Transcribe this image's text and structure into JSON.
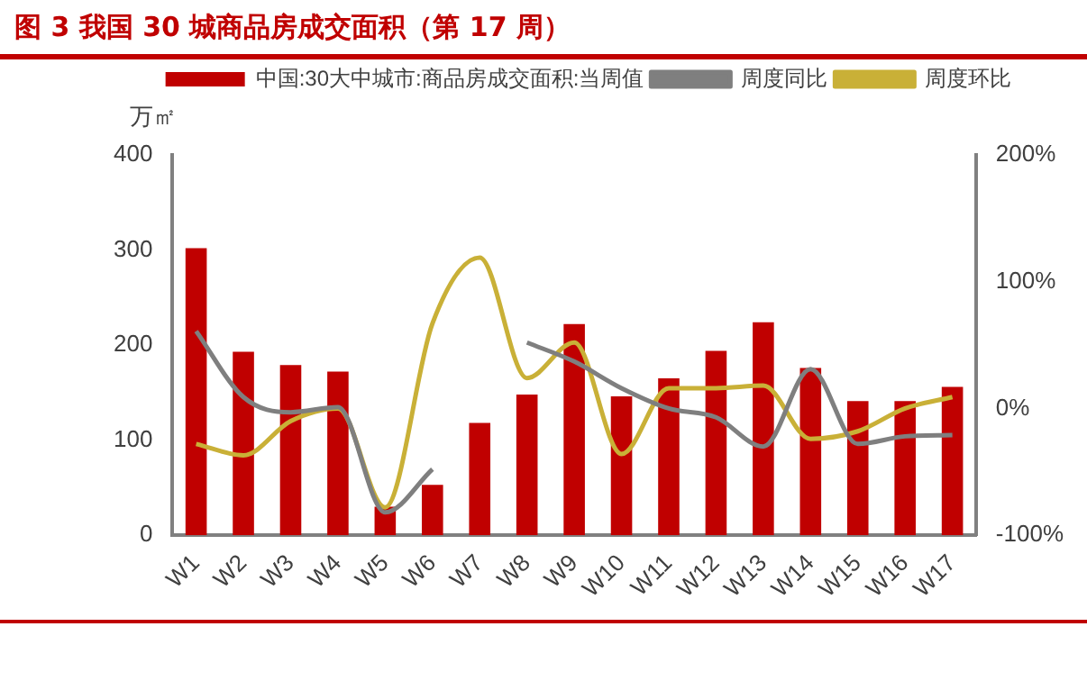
{
  "chart_data": {
    "type": "bar",
    "title": "图 3 我国 30 城商品房成交面积（第 17 周）",
    "ylabel": "万㎡",
    "categories": [
      "W1",
      "W2",
      "W3",
      "W4",
      "W5",
      "W6",
      "W7",
      "W8",
      "W9",
      "W10",
      "W11",
      "W12",
      "W13",
      "W14",
      "W15",
      "W16",
      "W17"
    ],
    "series": [
      {
        "name": "中国:30大中城市:商品房成交面积:当周值",
        "color": "#c00000",
        "values": [
          302,
          193,
          179,
          172,
          30,
          53,
          118,
          148,
          222,
          146,
          165,
          194,
          224,
          176,
          141,
          141,
          156
        ]
      },
      {
        "name": "周度同比",
        "type": "line",
        "axis": "y2",
        "color": "#7f7f7f",
        "values": [
          61,
          9,
          -3,
          1,
          -82,
          -48,
          null,
          52,
          37,
          16,
          0,
          -7,
          -30,
          31,
          -28,
          -22,
          -21
        ]
      },
      {
        "name": "周度环比",
        "type": "line",
        "axis": "y2",
        "color": "#c9b037",
        "values": [
          -28,
          -37,
          -10,
          0,
          -78,
          67,
          119,
          24,
          52,
          -36,
          16,
          16,
          18,
          -24,
          -18,
          0,
          9
        ]
      }
    ],
    "ylim": [
      0,
      400
    ],
    "yticks": [
      0,
      100,
      200,
      300,
      400
    ],
    "y2lim": [
      -100,
      200
    ],
    "y2ticks": [
      {
        "value": -100,
        "label": "-100%"
      },
      {
        "value": 0,
        "label": "0%"
      },
      {
        "value": 100,
        "label": "100%"
      },
      {
        "value": 200,
        "label": "200%"
      }
    ],
    "grid": false,
    "legend": "top",
    "marker": "none"
  }
}
